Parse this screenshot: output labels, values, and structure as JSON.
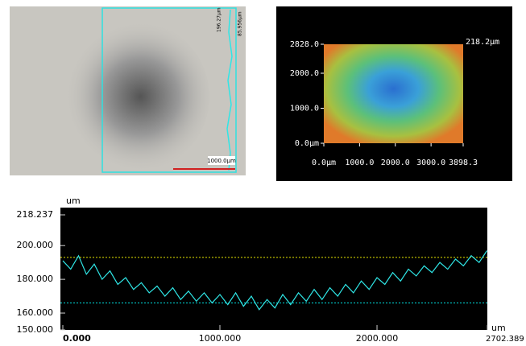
{
  "micrograph": {
    "labels": [
      "196.27μm",
      "85.956μm"
    ],
    "scale_bar": "1000.0μm"
  },
  "heatmap": {
    "corner_label": "218.2μm",
    "xlim": [
      0,
      3898.3
    ],
    "ylim": [
      0,
      2828
    ],
    "xticks": [
      {
        "value": 0,
        "label": "0.0μm"
      },
      {
        "value": 1000,
        "label": "1000.0"
      },
      {
        "value": 2000,
        "label": "2000.0"
      },
      {
        "value": 3000,
        "label": "3000.0"
      },
      {
        "value": 3898.3,
        "label": "3898.3"
      }
    ],
    "yticks": [
      {
        "value": 0,
        "label": "0.0μm"
      },
      {
        "value": 1000,
        "label": "1000.0"
      },
      {
        "value": 2000,
        "label": "2000.0"
      },
      {
        "value": 2828,
        "label": "2828.0"
      }
    ]
  },
  "chart_data": {
    "type": "line",
    "y_label": "um",
    "x_label": "um",
    "xlim": [
      0,
      2702.389
    ],
    "ylim": [
      150,
      218.237
    ],
    "xticks": [
      {
        "value": 0,
        "label": "0.000"
      },
      {
        "value": 1000,
        "label": "1000.000"
      },
      {
        "value": 2000,
        "label": "2000.000"
      },
      {
        "value": 2702.389,
        "label": "2702.389"
      }
    ],
    "yticks": [
      {
        "value": 150,
        "label": "150.000"
      },
      {
        "value": 160,
        "label": "160.000"
      },
      {
        "value": 180,
        "label": "180.000"
      },
      {
        "value": 200,
        "label": "200.000"
      },
      {
        "value": 218.237,
        "label": "218.237"
      }
    ],
    "reference_lines": [
      {
        "value": 193,
        "color": "#e6e600"
      },
      {
        "value": 166,
        "color": "#00e0e0"
      }
    ],
    "series": [
      {
        "color": "#2fe6e6",
        "x": [
          0,
          50,
          100,
          150,
          200,
          250,
          300,
          350,
          400,
          450,
          500,
          550,
          600,
          650,
          700,
          750,
          800,
          850,
          900,
          950,
          1000,
          1050,
          1100,
          1150,
          1200,
          1250,
          1300,
          1350,
          1400,
          1450,
          1500,
          1550,
          1600,
          1650,
          1700,
          1750,
          1800,
          1850,
          1900,
          1950,
          2000,
          2050,
          2100,
          2150,
          2200,
          2250,
          2300,
          2350,
          2400,
          2450,
          2500,
          2550,
          2600,
          2650,
          2700
        ],
        "values": [
          191,
          186,
          194,
          183,
          189,
          180,
          185,
          177,
          181,
          174,
          178,
          172,
          176,
          170,
          175,
          168,
          173,
          167,
          172,
          166,
          171,
          165,
          172,
          164,
          170,
          162,
          168,
          163,
          171,
          165,
          172,
          167,
          174,
          168,
          175,
          170,
          177,
          172,
          179,
          174,
          181,
          177,
          184,
          179,
          186,
          182,
          188,
          184,
          190,
          186,
          192,
          188,
          194,
          190,
          197
        ]
      }
    ]
  }
}
